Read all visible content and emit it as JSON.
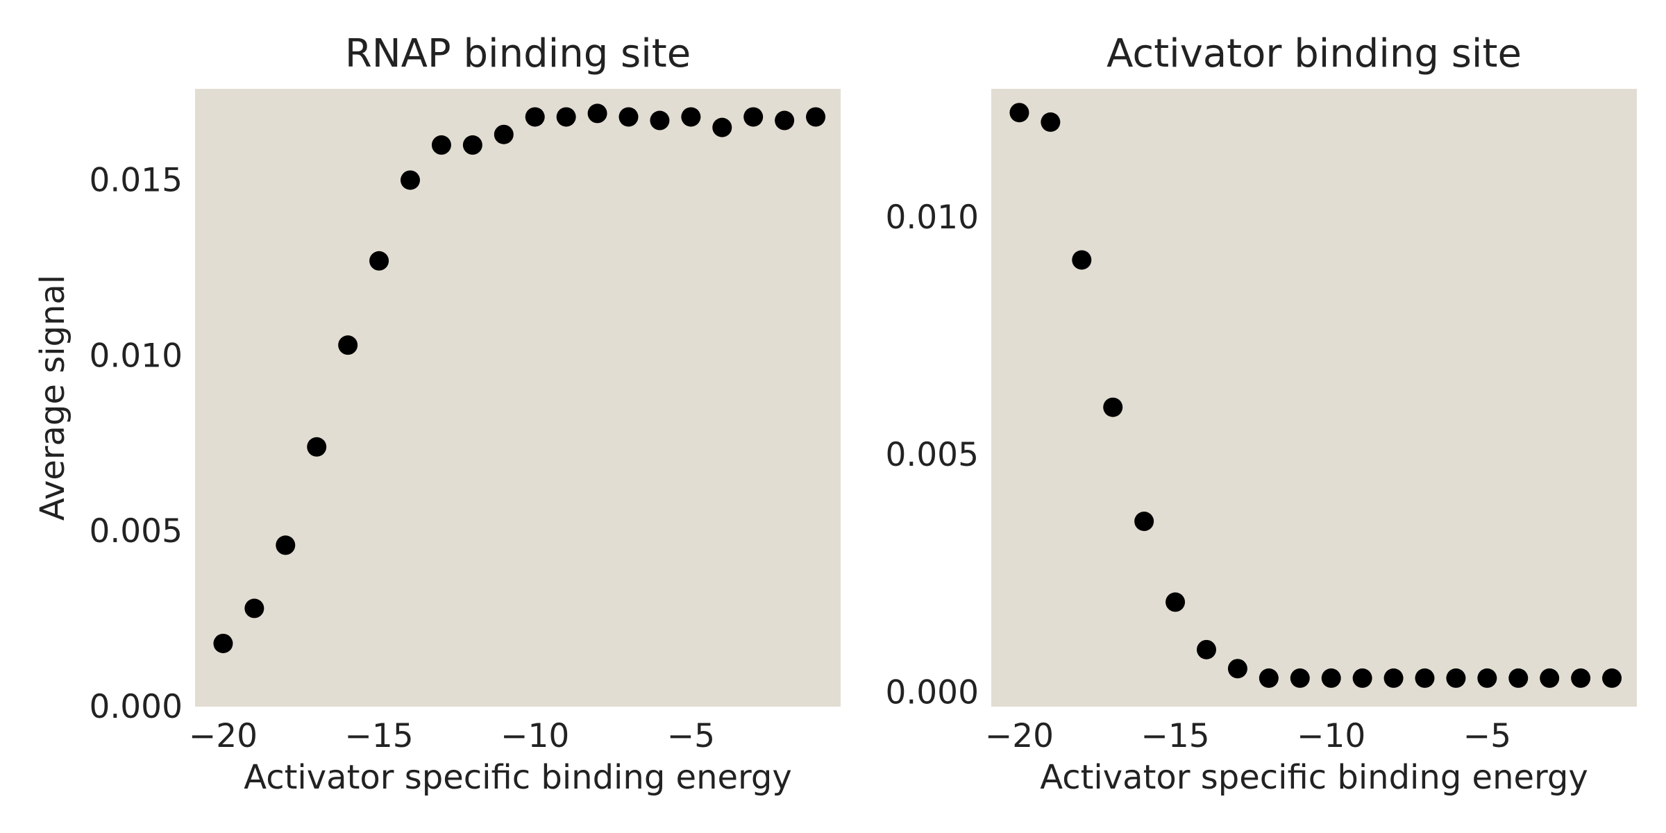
{
  "colors": {
    "plot_background": "#e2ddd2",
    "marker": "#000000",
    "text": "#222222"
  },
  "chart_data": [
    {
      "type": "scatter",
      "title": "RNAP binding site",
      "xlabel": "Activator specific binding energy",
      "ylabel": "Average signal",
      "xlim": [
        -20.9,
        -0.2
      ],
      "ylim": [
        0.0,
        0.0176
      ],
      "xticks": [
        -20,
        -15,
        -10,
        -5
      ],
      "xtick_labels": [
        "−20",
        "−15",
        "−10",
        "−5"
      ],
      "yticks": [
        0.0,
        0.005,
        0.01,
        0.015
      ],
      "ytick_labels": [
        "0.000",
        "0.005",
        "0.010",
        "0.015"
      ],
      "grid": false,
      "x": [
        -20,
        -19,
        -18,
        -17,
        -16,
        -15,
        -14,
        -13,
        -12,
        -11,
        -10,
        -9,
        -8,
        -7,
        -6,
        -5,
        -4,
        -3,
        -2,
        -1
      ],
      "y": [
        0.0018,
        0.0028,
        0.0046,
        0.0074,
        0.0103,
        0.0127,
        0.015,
        0.016,
        0.016,
        0.0163,
        0.0168,
        0.0168,
        0.0169,
        0.0168,
        0.0167,
        0.0168,
        0.0165,
        0.0168,
        0.0167,
        0.0168
      ]
    },
    {
      "type": "scatter",
      "title": "Activator binding site",
      "xlabel": "Activator specific binding energy",
      "ylabel": "",
      "xlim": [
        -20.9,
        -0.2
      ],
      "ylim": [
        -0.0003,
        0.0127
      ],
      "xticks": [
        -20,
        -15,
        -10,
        -5
      ],
      "xtick_labels": [
        "−20",
        "−15",
        "−10",
        "−5"
      ],
      "yticks": [
        0.0,
        0.005,
        0.01
      ],
      "ytick_labels": [
        "0.000",
        "0.005",
        "0.010"
      ],
      "grid": false,
      "x": [
        -20,
        -19,
        -18,
        -17,
        -16,
        -15,
        -14,
        -13,
        -12,
        -11,
        -10,
        -9,
        -8,
        -7,
        -6,
        -5,
        -4,
        -3,
        -2,
        -1
      ],
      "y": [
        0.0122,
        0.012,
        0.0091,
        0.006,
        0.0036,
        0.0019,
        0.0009,
        0.0005,
        0.0003,
        0.0003,
        0.0003,
        0.0003,
        0.0003,
        0.0003,
        0.0003,
        0.0003,
        0.0003,
        0.0003,
        0.0003,
        0.0003
      ]
    }
  ]
}
